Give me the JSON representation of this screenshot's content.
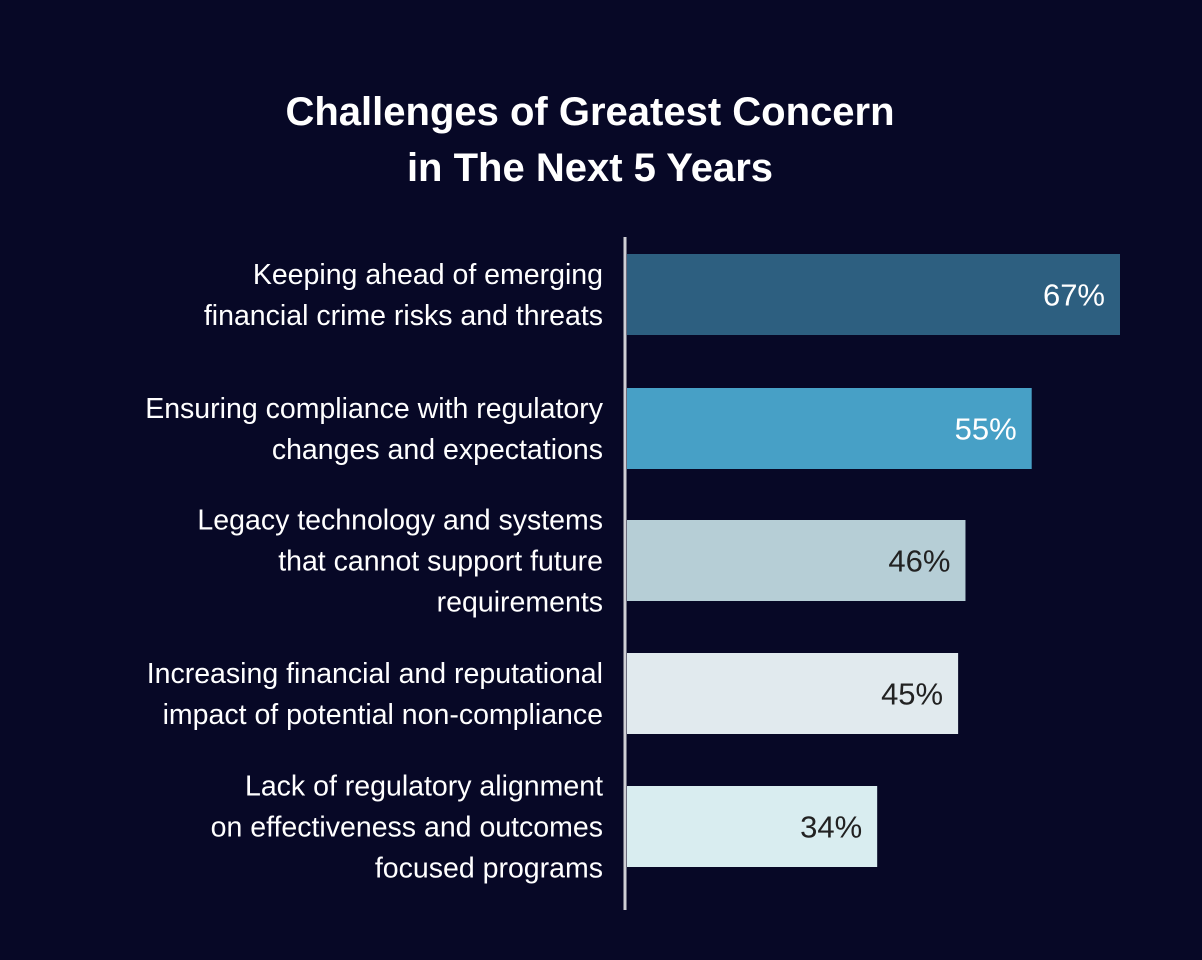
{
  "chart_data": {
    "type": "bar",
    "orientation": "horizontal",
    "title": "Challenges of Greatest Concern in The Next 5 Years",
    "title_lines": [
      "Challenges of Greatest Concern",
      "in The Next 5 Years"
    ],
    "categories": [
      [
        "Keeping ahead of emerging",
        "financial crime risks and threats"
      ],
      [
        "Ensuring compliance with regulatory",
        "changes and expectations"
      ],
      [
        "Legacy technology and systems",
        "that cannot support future",
        "requirements"
      ],
      [
        "Increasing financial and reputational",
        "impact of potential non-compliance"
      ],
      [
        "Lack of regulatory alignment",
        "on effectiveness and outcomes",
        "focused programs"
      ]
    ],
    "values": [
      67,
      55,
      46,
      45,
      34
    ],
    "value_labels": [
      "67%",
      "55%",
      "46%",
      "45%",
      "34%"
    ],
    "unit": "%",
    "xlabel": "",
    "ylabel": "",
    "xlim": [
      0,
      67
    ],
    "grid": false,
    "legend": "none",
    "colors": [
      "#2d5f80",
      "#47a0c6",
      "#b6ced6",
      "#e1eaee",
      "#d9edf0"
    ],
    "label_colors": [
      "#ffffff",
      "#ffffff",
      "#222222",
      "#222222",
      "#222222"
    ],
    "background": "#070826",
    "axis_color": "#cfcfd4"
  }
}
